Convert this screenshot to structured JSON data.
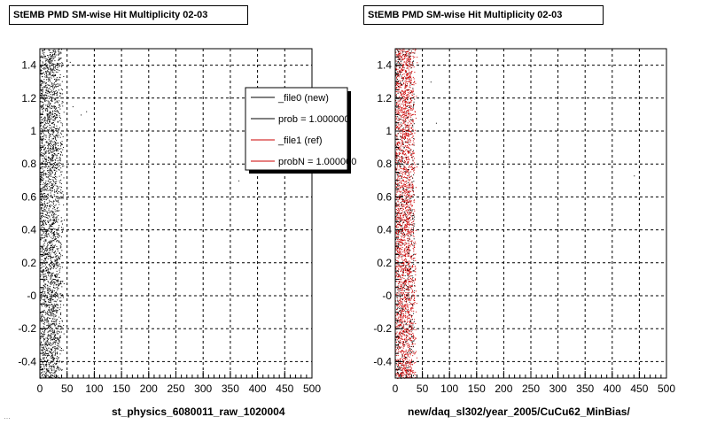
{
  "chart_data": [
    {
      "type": "scatter",
      "title": "StEMB PMD SM-wise Hit Multiplicity 02-03",
      "xlabel": "st_physics_6080011_raw_1020004",
      "ylabel": "",
      "xlim": [
        0,
        500
      ],
      "ylim": [
        -0.5,
        1.5
      ],
      "x_ticks": [
        0,
        50,
        100,
        150,
        200,
        250,
        300,
        350,
        400,
        450,
        500
      ],
      "y_ticks": [
        -0.4,
        -0.2,
        0,
        0.2,
        0.4,
        0.6,
        0.8,
        1,
        1.2,
        1.4
      ],
      "y_tick_labels": [
        "-0.4",
        "-0.2",
        "-0",
        "0.2",
        "0.4",
        "0.6",
        "0.8",
        "1",
        "1.2",
        "1.4"
      ],
      "grid": true,
      "series": [
        {
          "name": "_file0 (new)",
          "color": "#000000",
          "x_range": [
            0,
            45
          ],
          "y_range": [
            -0.5,
            1.5
          ]
        }
      ],
      "outliers": [
        {
          "x": 60,
          "y": 1.15
        },
        {
          "x": 75,
          "y": 1.1
        },
        {
          "x": 85,
          "y": 1.12
        },
        {
          "x": 55,
          "y": 1.42
        },
        {
          "x": 50,
          "y": 0.95
        },
        {
          "x": 365,
          "y": 0.7
        }
      ],
      "legend": {
        "position": "top-right",
        "entries": [
          {
            "label": "_file0 (new)",
            "color": "#000000"
          },
          {
            "label": "prob = 1.000000",
            "color": "#000000"
          },
          {
            "label": "_file1 (ref)",
            "color": "#cc0000"
          },
          {
            "label": "probN = 1.000000",
            "color": "#cc0000"
          }
        ]
      }
    },
    {
      "type": "scatter",
      "title": "StEMB PMD SM-wise Hit Multiplicity 02-03",
      "xlabel": "new/daq_sl302/year_2005/CuCu62_MinBias/",
      "ylabel": "",
      "xlim": [
        0,
        500
      ],
      "ylim": [
        -0.5,
        1.5
      ],
      "x_ticks": [
        0,
        50,
        100,
        150,
        200,
        250,
        300,
        350,
        400,
        450,
        500
      ],
      "y_ticks": [
        -0.4,
        -0.2,
        0,
        0.2,
        0.4,
        0.6,
        0.8,
        1,
        1.2,
        1.4
      ],
      "y_tick_labels": [
        "-0.4",
        "-0.2",
        "-0",
        "0.2",
        "0.4",
        "0.6",
        "0.8",
        "1",
        "1.2",
        "1.4"
      ],
      "grid": true,
      "series": [
        {
          "name": "_file1 (ref)",
          "color": "#cc0000",
          "x_range": [
            0,
            40
          ],
          "y_range": [
            -0.5,
            1.5
          ]
        }
      ],
      "outliers": [
        {
          "x": 65,
          "y": 1.3
        },
        {
          "x": 75,
          "y": 1.05
        },
        {
          "x": 440,
          "y": 0.73
        }
      ]
    }
  ],
  "footer": "…"
}
